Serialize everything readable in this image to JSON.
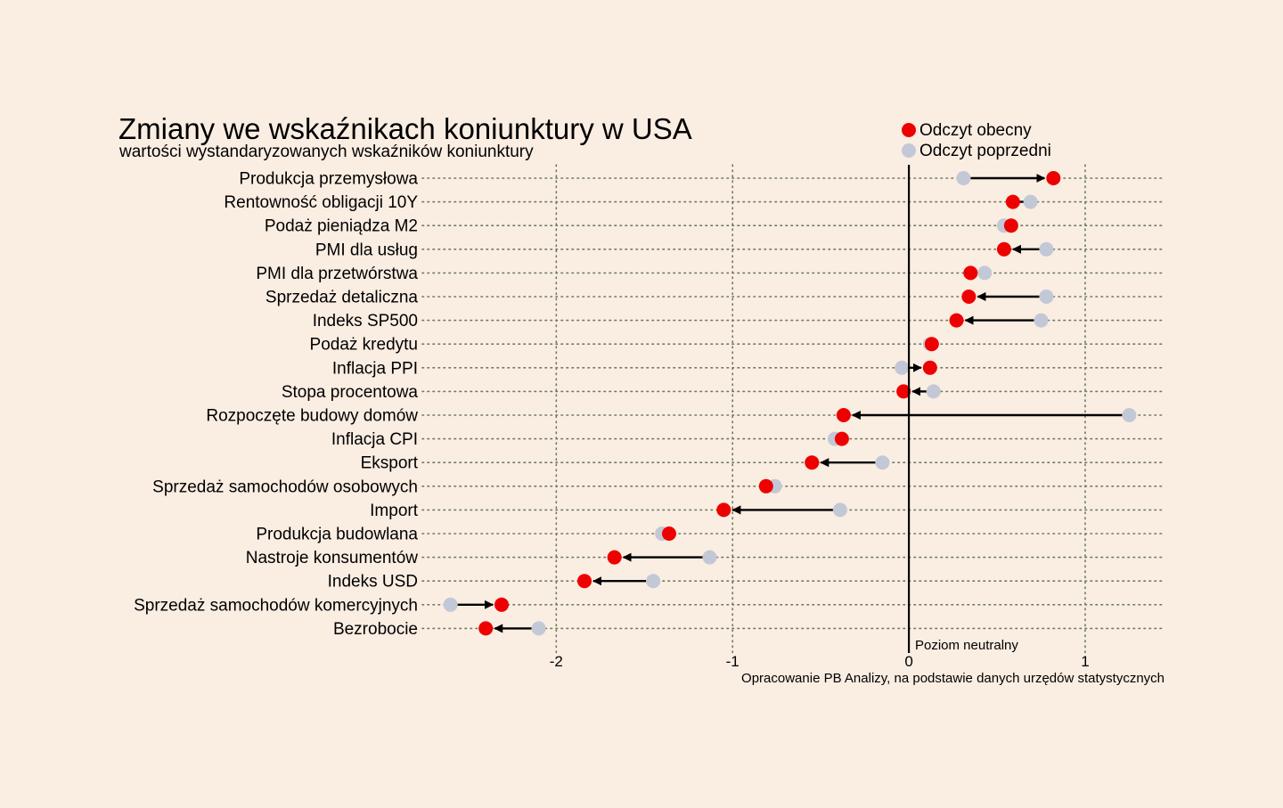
{
  "chart_data": {
    "type": "dumbbell",
    "title": "Zmiany we wskaźnikach koniunktury w USA",
    "subtitle": "wartości wystandaryzowanych wskaźników koniunktury",
    "legend": {
      "placement": "top-right",
      "current_label": "Odczyt obecny",
      "previous_label": "Odczyt poprzedni"
    },
    "colors": {
      "current": "#ee0000",
      "previous": "#c3c8d6",
      "background": "#faede2",
      "grid": "#6b7a5e",
      "arrow": "#000000"
    },
    "xlim": [
      -2.78,
      1.45
    ],
    "x_ticks": [
      -2,
      -1,
      0,
      1
    ],
    "x_tick_labels": [
      "-2",
      "-1",
      "0",
      "1"
    ],
    "grid": "dotted",
    "neutral_line": {
      "x": 0,
      "label": "Poziom neutralny"
    },
    "source": "Opracowanie PB Analizy, na podstawie danych urzędów statystycznych",
    "categories": [
      "Produkcja przemysłowa",
      "Rentowność obligacji 10Y",
      "Podaż pieniądza M2",
      "PMI dla usług",
      "PMI dla przetwórstwa",
      "Sprzedaż detaliczna",
      "Indeks SP500",
      "Podaż kredytu",
      "Inflacja PPI",
      "Stopa procentowa",
      "Rozpoczęte budowy domów",
      "Inflacja CPI",
      "Eksport",
      "Sprzedaż samochodów osobowych",
      "Import",
      "Produkcja budowlana",
      "Nastroje konsumentów",
      "Indeks USD",
      "Sprzedaż samochodów komercyjnych",
      "Bezrobocie"
    ],
    "series": [
      {
        "name": "Odczyt obecny",
        "values": [
          0.82,
          0.59,
          0.58,
          0.54,
          0.35,
          0.34,
          0.27,
          0.13,
          0.12,
          -0.03,
          -0.37,
          -0.38,
          -0.55,
          -0.81,
          -1.05,
          -1.36,
          -1.67,
          -1.84,
          -2.31,
          -2.4
        ]
      },
      {
        "name": "Odczyt poprzedni",
        "values": [
          0.31,
          0.69,
          0.54,
          0.78,
          0.43,
          0.78,
          0.75,
          0.12,
          -0.04,
          0.14,
          1.25,
          -0.42,
          -0.15,
          -0.76,
          -0.39,
          -1.4,
          -1.13,
          -1.45,
          -2.6,
          -2.1
        ]
      }
    ]
  }
}
